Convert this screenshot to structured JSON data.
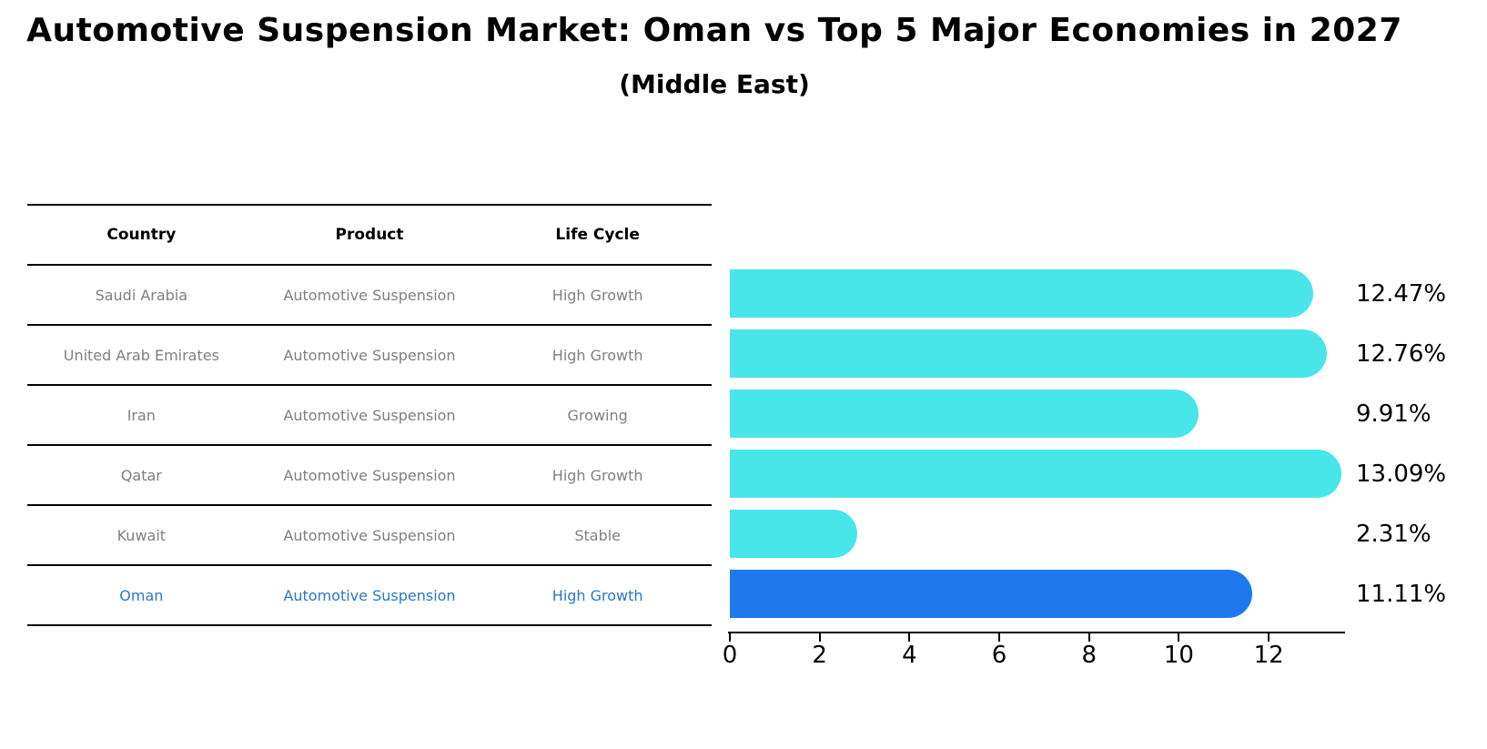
{
  "header": {
    "title": "Automotive Suspension Market: Oman vs Top 5 Major Economies in 2027",
    "subtitle": "(Middle East)"
  },
  "table": {
    "columns": [
      "Country",
      "Product",
      "Life Cycle"
    ],
    "rows": [
      {
        "country": "Saudi Arabia",
        "product": "Automotive Suspension",
        "life_cycle": "High Growth",
        "highlighted": false
      },
      {
        "country": "United Arab Emirates",
        "product": "Automotive Suspension",
        "life_cycle": "High Growth",
        "highlighted": false
      },
      {
        "country": "Iran",
        "product": "Automotive Suspension",
        "life_cycle": "Growing",
        "highlighted": false
      },
      {
        "country": "Qatar",
        "product": "Automotive Suspension",
        "life_cycle": "High Growth",
        "highlighted": false
      },
      {
        "country": "Kuwait",
        "product": "Automotive Suspension",
        "life_cycle": "Stable",
        "highlighted": false
      },
      {
        "country": "Oman",
        "product": "Automotive Suspension",
        "life_cycle": "High Growth",
        "highlighted": true
      }
    ]
  },
  "chart_data": {
    "type": "bar",
    "orientation": "horizontal",
    "title": "Automotive Suspension Market: Oman vs Top 5 Major Economies in 2027 (Middle East)",
    "categories": [
      "Saudi Arabia",
      "United Arab Emirates",
      "Iran",
      "Qatar",
      "Kuwait",
      "Oman"
    ],
    "values": [
      12.47,
      12.76,
      9.91,
      13.09,
      2.31,
      11.11
    ],
    "value_labels": [
      "12.47%",
      "12.76%",
      "9.91%",
      "13.09%",
      "2.31%",
      "11.11%"
    ],
    "xticks": [
      0,
      2,
      4,
      6,
      8,
      10,
      12
    ],
    "xlim": [
      0,
      13.7
    ],
    "grid": false,
    "legend": false,
    "highlight_index": 5,
    "bar_colors": {
      "default": "#48e5e9",
      "highlight": "#1e7aec",
      "highlight_border": "#1e7aec"
    },
    "text_colors": {
      "table_body": "#7f7f7f",
      "table_header": "#000000",
      "highlight_row": "#2878c8"
    }
  }
}
